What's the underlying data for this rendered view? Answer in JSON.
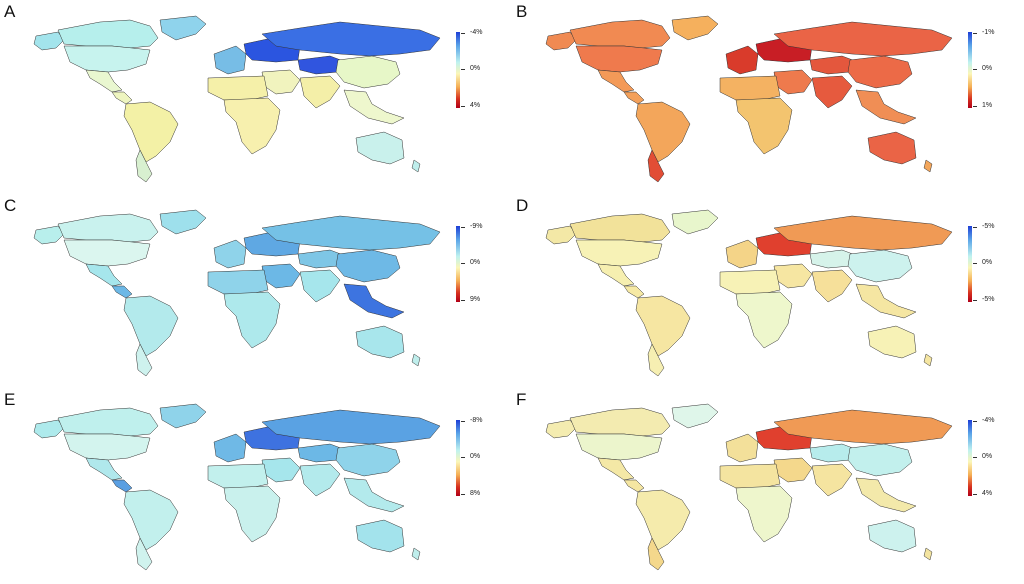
{
  "panels": [
    {
      "letter": "A",
      "ticks": [
        "-4%",
        "0%",
        "4%"
      ],
      "regions": {
        "northamerica": "#aeeceb",
        "greenland": "#8fd3ec",
        "alaska": "#a3e4ec",
        "canada": "#b6efec",
        "usa": "#c7f3ee",
        "mexico": "#e9f7d0",
        "centralam": "#eef5c0",
        "southamerica": "#f3f1a6",
        "southcone": "#d8f0d0",
        "westeurope": "#77bde6",
        "eastusSR": "#2b55e0",
        "russia": "#3a6fe4",
        "central": "#3055df",
        "northafrica": "#f5f0a9",
        "subsahara": "#f7f0ae",
        "middleeast": "#f1f3be",
        "southasia": "#f4efa8",
        "eastasia": "#e7f7c8",
        "seasia": "#eef7cd",
        "australia": "#c9f1ec",
        "nz": "#bfeeec"
      }
    },
    {
      "letter": "B",
      "ticks": [
        "-1%",
        "0%",
        "1%"
      ],
      "regions": {
        "northamerica": "#f07a4e",
        "greenland": "#f5b05d",
        "alaska": "#f08a52",
        "canada": "#f18a52",
        "usa": "#ef7a4d",
        "mexico": "#f39a58",
        "centralam": "#f3a05a",
        "southamerica": "#f3a65b",
        "southcone": "#e24d35",
        "westeurope": "#d93b2b",
        "eastusSR": "#c81e25",
        "russia": "#ea6446",
        "central": "#e4573d",
        "northafrica": "#f4b262",
        "subsahara": "#f3c46f",
        "middleeast": "#ee7a4d",
        "southasia": "#e65a3e",
        "eastasia": "#ec6a47",
        "seasia": "#f08e55",
        "australia": "#ea6446",
        "nz": "#f3a65b"
      }
    },
    {
      "letter": "C",
      "ticks": [
        "-9%",
        "0%",
        "9%"
      ],
      "regions": {
        "northamerica": "#c6f1ee",
        "greenland": "#9ee0ec",
        "alaska": "#b8efec",
        "canada": "#c9f2ee",
        "usa": "#dbf6ef",
        "mexico": "#a6e6ec",
        "centralam": "#6cb8e6",
        "southamerica": "#b3eaec",
        "southcone": "#cef2ee",
        "westeurope": "#8fd3ea",
        "eastusSR": "#5fa8e3",
        "russia": "#75c1e6",
        "central": "#7ec6e6",
        "northafrica": "#8fd3ea",
        "subsahara": "#aee9ec",
        "middleeast": "#6cb8e6",
        "southasia": "#a6e6ec",
        "eastasia": "#6eb9e6",
        "seasia": "#3d74e0",
        "australia": "#a8e6ec",
        "nz": "#bfeeec"
      }
    },
    {
      "letter": "D",
      "ticks": [
        "-5%",
        "0%",
        "-5%"
      ],
      "regions": {
        "northamerica": "#f3e39a",
        "greenland": "#e8f6cc",
        "alaska": "#f3e8a6",
        "canada": "#f2e29a",
        "usa": "#f7f2b6",
        "mexico": "#f6efb0",
        "centralam": "#f6e9a4",
        "southamerica": "#f6e6a2",
        "southcone": "#f6efb2",
        "westeurope": "#f4d488",
        "eastusSR": "#e0402e",
        "russia": "#f09a55",
        "central": "#d6f3ea",
        "northafrica": "#f7f2b6",
        "subsahara": "#eef7cc",
        "middleeast": "#f6e6a2",
        "southasia": "#f6e09a",
        "eastasia": "#cdf2ee",
        "seasia": "#f5e6a2",
        "australia": "#f7f2b6",
        "nz": "#f5e6a2"
      }
    },
    {
      "letter": "E",
      "ticks": [
        "-8%",
        "0%",
        "8%"
      ],
      "regions": {
        "northamerica": "#c0f0ed",
        "greenland": "#8fd3ea",
        "alaska": "#aeeaec",
        "canada": "#bff0ed",
        "usa": "#d3f4ee",
        "mexico": "#b0e8ec",
        "centralam": "#5a9fe2",
        "southamerica": "#c2f0ed",
        "southcone": "#d0f3ee",
        "westeurope": "#6fb9e6",
        "eastusSR": "#3e72e0",
        "russia": "#5aa2e3",
        "central": "#6cb8e6",
        "northafrica": "#c2f0ed",
        "subsahara": "#c9f1ed",
        "middleeast": "#a6e6ec",
        "southasia": "#b3eaec",
        "eastasia": "#8fd3ea",
        "seasia": "#b3eaec",
        "australia": "#a3e3ec",
        "nz": "#bfeeec"
      }
    },
    {
      "letter": "F",
      "ticks": [
        "-4%",
        "0%",
        "4%"
      ],
      "regions": {
        "northamerica": "#f3eab0",
        "greenland": "#dff6ea",
        "alaska": "#f4ecb0",
        "canada": "#f3ebb0",
        "usa": "#ecf5cc",
        "mexico": "#f4e8a6",
        "centralam": "#f5e6a2",
        "southamerica": "#f5ebac",
        "southcone": "#f4d88c",
        "westeurope": "#f3e09a",
        "eastusSR": "#e0402e",
        "russia": "#f09a55",
        "central": "#b7ecec",
        "northafrica": "#f4e4a0",
        "subsahara": "#eef6cc",
        "middleeast": "#f4d88c",
        "southasia": "#f5e4a0",
        "eastasia": "#c2f0ed",
        "seasia": "#f3e9aa",
        "australia": "#cdf2ee",
        "nz": "#f3e4a0"
      }
    }
  ]
}
